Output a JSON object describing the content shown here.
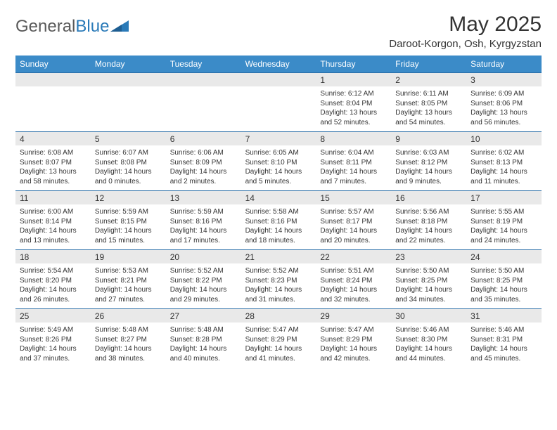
{
  "logo": {
    "text1": "General",
    "text2": "Blue"
  },
  "title": "May 2025",
  "location": "Daroot-Korgon, Osh, Kyrgyzstan",
  "colors": {
    "header_bg": "#3b8bc8",
    "header_text": "#ffffff",
    "band_bg": "#e9e9e9",
    "row_border": "#2a6ea8",
    "text": "#333333"
  },
  "daysOfWeek": [
    "Sunday",
    "Monday",
    "Tuesday",
    "Wednesday",
    "Thursday",
    "Friday",
    "Saturday"
  ],
  "weeks": [
    [
      {
        "n": "",
        "lines": []
      },
      {
        "n": "",
        "lines": []
      },
      {
        "n": "",
        "lines": []
      },
      {
        "n": "",
        "lines": []
      },
      {
        "n": "1",
        "lines": [
          "Sunrise: 6:12 AM",
          "Sunset: 8:04 PM",
          "Daylight: 13 hours",
          "and 52 minutes."
        ]
      },
      {
        "n": "2",
        "lines": [
          "Sunrise: 6:11 AM",
          "Sunset: 8:05 PM",
          "Daylight: 13 hours",
          "and 54 minutes."
        ]
      },
      {
        "n": "3",
        "lines": [
          "Sunrise: 6:09 AM",
          "Sunset: 8:06 PM",
          "Daylight: 13 hours",
          "and 56 minutes."
        ]
      }
    ],
    [
      {
        "n": "4",
        "lines": [
          "Sunrise: 6:08 AM",
          "Sunset: 8:07 PM",
          "Daylight: 13 hours",
          "and 58 minutes."
        ]
      },
      {
        "n": "5",
        "lines": [
          "Sunrise: 6:07 AM",
          "Sunset: 8:08 PM",
          "Daylight: 14 hours",
          "and 0 minutes."
        ]
      },
      {
        "n": "6",
        "lines": [
          "Sunrise: 6:06 AM",
          "Sunset: 8:09 PM",
          "Daylight: 14 hours",
          "and 2 minutes."
        ]
      },
      {
        "n": "7",
        "lines": [
          "Sunrise: 6:05 AM",
          "Sunset: 8:10 PM",
          "Daylight: 14 hours",
          "and 5 minutes."
        ]
      },
      {
        "n": "8",
        "lines": [
          "Sunrise: 6:04 AM",
          "Sunset: 8:11 PM",
          "Daylight: 14 hours",
          "and 7 minutes."
        ]
      },
      {
        "n": "9",
        "lines": [
          "Sunrise: 6:03 AM",
          "Sunset: 8:12 PM",
          "Daylight: 14 hours",
          "and 9 minutes."
        ]
      },
      {
        "n": "10",
        "lines": [
          "Sunrise: 6:02 AM",
          "Sunset: 8:13 PM",
          "Daylight: 14 hours",
          "and 11 minutes."
        ]
      }
    ],
    [
      {
        "n": "11",
        "lines": [
          "Sunrise: 6:00 AM",
          "Sunset: 8:14 PM",
          "Daylight: 14 hours",
          "and 13 minutes."
        ]
      },
      {
        "n": "12",
        "lines": [
          "Sunrise: 5:59 AM",
          "Sunset: 8:15 PM",
          "Daylight: 14 hours",
          "and 15 minutes."
        ]
      },
      {
        "n": "13",
        "lines": [
          "Sunrise: 5:59 AM",
          "Sunset: 8:16 PM",
          "Daylight: 14 hours",
          "and 17 minutes."
        ]
      },
      {
        "n": "14",
        "lines": [
          "Sunrise: 5:58 AM",
          "Sunset: 8:16 PM",
          "Daylight: 14 hours",
          "and 18 minutes."
        ]
      },
      {
        "n": "15",
        "lines": [
          "Sunrise: 5:57 AM",
          "Sunset: 8:17 PM",
          "Daylight: 14 hours",
          "and 20 minutes."
        ]
      },
      {
        "n": "16",
        "lines": [
          "Sunrise: 5:56 AM",
          "Sunset: 8:18 PM",
          "Daylight: 14 hours",
          "and 22 minutes."
        ]
      },
      {
        "n": "17",
        "lines": [
          "Sunrise: 5:55 AM",
          "Sunset: 8:19 PM",
          "Daylight: 14 hours",
          "and 24 minutes."
        ]
      }
    ],
    [
      {
        "n": "18",
        "lines": [
          "Sunrise: 5:54 AM",
          "Sunset: 8:20 PM",
          "Daylight: 14 hours",
          "and 26 minutes."
        ]
      },
      {
        "n": "19",
        "lines": [
          "Sunrise: 5:53 AM",
          "Sunset: 8:21 PM",
          "Daylight: 14 hours",
          "and 27 minutes."
        ]
      },
      {
        "n": "20",
        "lines": [
          "Sunrise: 5:52 AM",
          "Sunset: 8:22 PM",
          "Daylight: 14 hours",
          "and 29 minutes."
        ]
      },
      {
        "n": "21",
        "lines": [
          "Sunrise: 5:52 AM",
          "Sunset: 8:23 PM",
          "Daylight: 14 hours",
          "and 31 minutes."
        ]
      },
      {
        "n": "22",
        "lines": [
          "Sunrise: 5:51 AM",
          "Sunset: 8:24 PM",
          "Daylight: 14 hours",
          "and 32 minutes."
        ]
      },
      {
        "n": "23",
        "lines": [
          "Sunrise: 5:50 AM",
          "Sunset: 8:25 PM",
          "Daylight: 14 hours",
          "and 34 minutes."
        ]
      },
      {
        "n": "24",
        "lines": [
          "Sunrise: 5:50 AM",
          "Sunset: 8:25 PM",
          "Daylight: 14 hours",
          "and 35 minutes."
        ]
      }
    ],
    [
      {
        "n": "25",
        "lines": [
          "Sunrise: 5:49 AM",
          "Sunset: 8:26 PM",
          "Daylight: 14 hours",
          "and 37 minutes."
        ]
      },
      {
        "n": "26",
        "lines": [
          "Sunrise: 5:48 AM",
          "Sunset: 8:27 PM",
          "Daylight: 14 hours",
          "and 38 minutes."
        ]
      },
      {
        "n": "27",
        "lines": [
          "Sunrise: 5:48 AM",
          "Sunset: 8:28 PM",
          "Daylight: 14 hours",
          "and 40 minutes."
        ]
      },
      {
        "n": "28",
        "lines": [
          "Sunrise: 5:47 AM",
          "Sunset: 8:29 PM",
          "Daylight: 14 hours",
          "and 41 minutes."
        ]
      },
      {
        "n": "29",
        "lines": [
          "Sunrise: 5:47 AM",
          "Sunset: 8:29 PM",
          "Daylight: 14 hours",
          "and 42 minutes."
        ]
      },
      {
        "n": "30",
        "lines": [
          "Sunrise: 5:46 AM",
          "Sunset: 8:30 PM",
          "Daylight: 14 hours",
          "and 44 minutes."
        ]
      },
      {
        "n": "31",
        "lines": [
          "Sunrise: 5:46 AM",
          "Sunset: 8:31 PM",
          "Daylight: 14 hours",
          "and 45 minutes."
        ]
      }
    ]
  ]
}
